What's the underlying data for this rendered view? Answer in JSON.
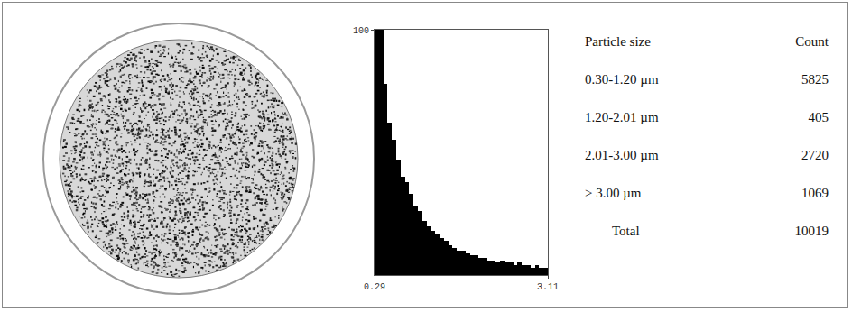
{
  "chart_data": {
    "type": "histogram",
    "bins": [
      0.29,
      0.3605,
      0.431,
      0.5015,
      0.572,
      0.6425,
      0.713,
      0.7835,
      0.854,
      0.9245,
      0.995,
      1.0655,
      1.136,
      1.2065,
      1.277,
      1.3475,
      1.418,
      1.4885,
      1.559,
      1.6295,
      1.7,
      1.7705,
      1.841,
      1.9115,
      1.982,
      2.0525,
      2.123,
      2.1935,
      2.264,
      2.3345,
      2.405,
      2.4755,
      2.546,
      2.6165,
      2.687,
      2.7575,
      2.828,
      2.8985,
      2.969,
      3.0395,
      3.11
    ],
    "values": [
      100,
      100,
      78,
      62,
      55,
      47,
      40,
      38,
      33,
      28,
      26,
      22,
      20,
      18,
      17,
      15,
      14,
      12,
      11,
      10,
      10,
      9,
      8,
      8,
      7,
      7,
      6,
      6,
      5,
      6,
      5,
      5,
      4,
      5,
      4,
      4,
      3,
      4,
      3,
      3
    ],
    "color": "#000000",
    "xlim": [
      0.29,
      3.11
    ],
    "xticks": [
      0.29,
      3.11
    ],
    "ylim": [
      0,
      100
    ],
    "yticks": [
      100
    ],
    "grid": true
  },
  "table": {
    "header": [
      "Particle size",
      "Count"
    ],
    "rows": [
      [
        "0.30-1.20 µm",
        5825
      ],
      [
        "1.20-2.01 µm",
        405
      ],
      [
        "2.01-3.00 µm",
        2720
      ],
      [
        "> 3.00 µm",
        1069
      ]
    ],
    "total": [
      "Total",
      10019
    ]
  }
}
